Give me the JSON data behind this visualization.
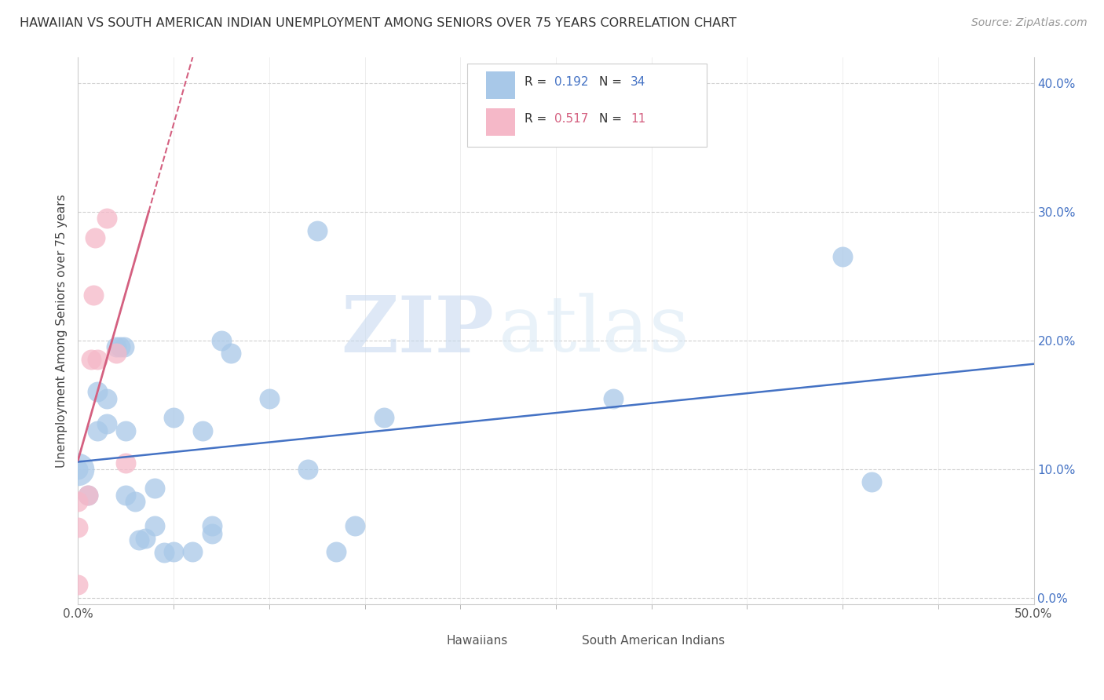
{
  "title": "HAWAIIAN VS SOUTH AMERICAN INDIAN UNEMPLOYMENT AMONG SENIORS OVER 75 YEARS CORRELATION CHART",
  "source": "Source: ZipAtlas.com",
  "ylabel": "Unemployment Among Seniors over 75 years",
  "xlim": [
    0,
    0.5
  ],
  "ylim": [
    -0.005,
    0.42
  ],
  "ylabel_vals": [
    0.0,
    0.1,
    0.2,
    0.3,
    0.4
  ],
  "ylabel_ticks": [
    "0.0%",
    "10.0%",
    "20.0%",
    "30.0%",
    "40.0%"
  ],
  "xtick_minor_vals": [
    0.05,
    0.1,
    0.15,
    0.2,
    0.25,
    0.3,
    0.35,
    0.4,
    0.45
  ],
  "hawaiian_R": 0.192,
  "hawaiian_N": 34,
  "sam_indian_R": 0.517,
  "sam_indian_N": 11,
  "hawaiian_color": "#a8c8e8",
  "sam_indian_color": "#f5b8c8",
  "hawaiian_line_color": "#4472c4",
  "sam_indian_line_color": "#d46080",
  "watermark_zip": "ZIP",
  "watermark_atlas": "atlas",
  "hawaiian_x": [
    0.0,
    0.005,
    0.01,
    0.01,
    0.015,
    0.015,
    0.02,
    0.022,
    0.024,
    0.025,
    0.025,
    0.03,
    0.032,
    0.035,
    0.04,
    0.04,
    0.045,
    0.05,
    0.05,
    0.06,
    0.065,
    0.07,
    0.07,
    0.075,
    0.08,
    0.1,
    0.12,
    0.125,
    0.135,
    0.145,
    0.16,
    0.28,
    0.4,
    0.415
  ],
  "hawaiian_y": [
    0.1,
    0.08,
    0.16,
    0.13,
    0.155,
    0.135,
    0.195,
    0.195,
    0.195,
    0.13,
    0.08,
    0.075,
    0.045,
    0.046,
    0.056,
    0.085,
    0.035,
    0.14,
    0.036,
    0.036,
    0.13,
    0.05,
    0.056,
    0.2,
    0.19,
    0.155,
    0.1,
    0.285,
    0.036,
    0.056,
    0.14,
    0.155,
    0.265,
    0.09
  ],
  "sam_indian_x": [
    0.0,
    0.0,
    0.0,
    0.005,
    0.007,
    0.008,
    0.009,
    0.01,
    0.015,
    0.02,
    0.025
  ],
  "sam_indian_y": [
    0.01,
    0.055,
    0.075,
    0.08,
    0.185,
    0.235,
    0.28,
    0.185,
    0.295,
    0.19,
    0.105
  ],
  "legend_R1": "R = 0.192",
  "legend_N1": "N = 34",
  "legend_R2": "R = 0.517",
  "legend_N2": "N = 11"
}
